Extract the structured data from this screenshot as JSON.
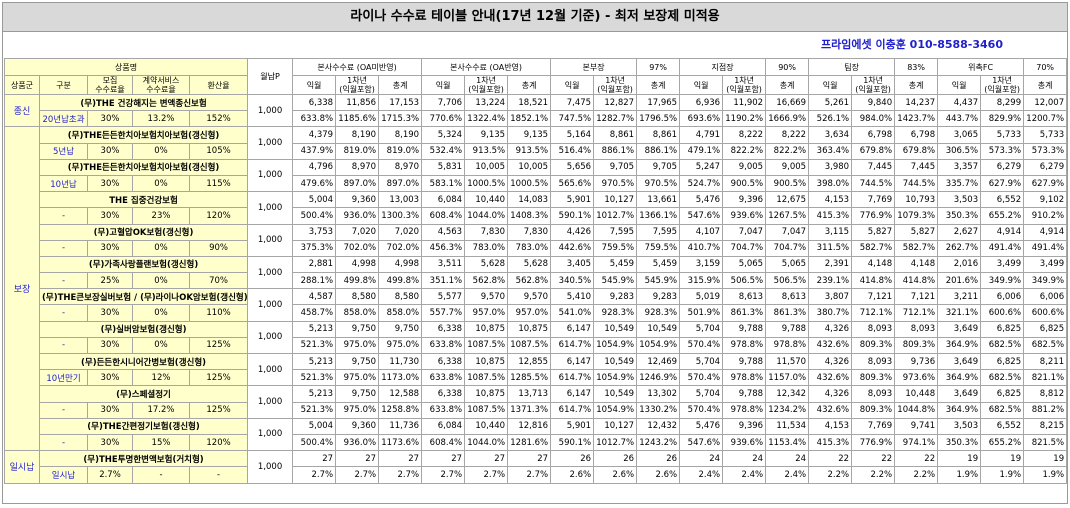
{
  "header": {
    "title": "라이나 수수료 테이블 안내(17년 12월 기준) - 최저 보장제 미적용",
    "contact": "프라임에셋 이충훈 010-8588-3460"
  },
  "table": {
    "product_header": "상품명",
    "left_columns": [
      "상품군",
      "구분",
      "모집\n수수료율",
      "계약서비스\n수수료율",
      "환산율"
    ],
    "monthly_header": "월납P",
    "groups_header": [
      {
        "name": "본사수수료 (OA미반영)"
      },
      {
        "name": "본사수수료 (OA반영)"
      },
      {
        "name": "본부장",
        "ratio": "97%"
      },
      {
        "name": "지점장",
        "ratio": "90%"
      },
      {
        "name": "팀장",
        "ratio": "83%"
      },
      {
        "name": "위촉FC",
        "ratio": "70%"
      }
    ],
    "sub_columns": [
      "익월",
      "1차년\n(익월포함)",
      "총계"
    ],
    "groups": [
      {
        "name": "종신",
        "products": [
          {
            "name": "(무)THE 건강해지는 변액종신보험",
            "term": "20년납초과",
            "recruit": "30%",
            "service": "13.2%",
            "conversion": "152%",
            "monthly": "1,000",
            "amounts": [
              "6,338",
              "11,856",
              "17,153",
              "7,706",
              "13,224",
              "18,521",
              "7,475",
              "12,827",
              "17,965",
              "6,936",
              "11,902",
              "16,669",
              "5,261",
              "9,840",
              "14,237",
              "4,437",
              "8,299",
              "12,007"
            ],
            "rates": [
              "633.8%",
              "1185.6%",
              "1715.3%",
              "770.6%",
              "1322.4%",
              "1852.1%",
              "747.5%",
              "1282.7%",
              "1796.5%",
              "693.6%",
              "1190.2%",
              "1666.9%",
              "526.1%",
              "984.0%",
              "1423.7%",
              "443.7%",
              "829.9%",
              "1200.7%"
            ]
          }
        ]
      },
      {
        "name": "보장",
        "products": [
          {
            "name": "(무)THE든든한치아보험치아보험(갱신형)",
            "term": "5년납",
            "recruit": "30%",
            "service": "0%",
            "conversion": "105%",
            "monthly": "1,000",
            "amounts": [
              "4,379",
              "8,190",
              "8,190",
              "5,324",
              "9,135",
              "9,135",
              "5,164",
              "8,861",
              "8,861",
              "4,791",
              "8,222",
              "8,222",
              "3,634",
              "6,798",
              "6,798",
              "3,065",
              "5,733",
              "5,733"
            ],
            "rates": [
              "437.9%",
              "819.0%",
              "819.0%",
              "532.4%",
              "913.5%",
              "913.5%",
              "516.4%",
              "886.1%",
              "886.1%",
              "479.1%",
              "822.2%",
              "822.2%",
              "363.4%",
              "679.8%",
              "679.8%",
              "306.5%",
              "573.3%",
              "573.3%"
            ]
          },
          {
            "name": "(무)THE든든한치아보험치아보험(갱신형)",
            "term": "10년납",
            "recruit": "30%",
            "service": "0%",
            "conversion": "115%",
            "monthly": "1,000",
            "amounts": [
              "4,796",
              "8,970",
              "8,970",
              "5,831",
              "10,005",
              "10,005",
              "5,656",
              "9,705",
              "9,705",
              "5,247",
              "9,005",
              "9,005",
              "3,980",
              "7,445",
              "7,445",
              "3,357",
              "6,279",
              "6,279"
            ],
            "rates": [
              "479.6%",
              "897.0%",
              "897.0%",
              "583.1%",
              "1000.5%",
              "1000.5%",
              "565.6%",
              "970.5%",
              "970.5%",
              "524.7%",
              "900.5%",
              "900.5%",
              "398.0%",
              "744.5%",
              "744.5%",
              "335.7%",
              "627.9%",
              "627.9%"
            ]
          },
          {
            "name": "THE 집중건강보험",
            "term": "-",
            "recruit": "30%",
            "service": "23%",
            "conversion": "120%",
            "monthly": "1,000",
            "amounts": [
              "5,004",
              "9,360",
              "13,003",
              "6,084",
              "10,440",
              "14,083",
              "5,901",
              "10,127",
              "13,661",
              "5,476",
              "9,396",
              "12,675",
              "4,153",
              "7,769",
              "10,793",
              "3,503",
              "6,552",
              "9,102"
            ],
            "rates": [
              "500.4%",
              "936.0%",
              "1300.3%",
              "608.4%",
              "1044.0%",
              "1408.3%",
              "590.1%",
              "1012.7%",
              "1366.1%",
              "547.6%",
              "939.6%",
              "1267.5%",
              "415.3%",
              "776.9%",
              "1079.3%",
              "350.3%",
              "655.2%",
              "910.2%"
            ]
          },
          {
            "name": "(무)고혈압OK보험(갱신형)",
            "term": "-",
            "recruit": "30%",
            "service": "0%",
            "conversion": "90%",
            "monthly": "1,000",
            "amounts": [
              "3,753",
              "7,020",
              "7,020",
              "4,563",
              "7,830",
              "7,830",
              "4,426",
              "7,595",
              "7,595",
              "4,107",
              "7,047",
              "7,047",
              "3,115",
              "5,827",
              "5,827",
              "2,627",
              "4,914",
              "4,914"
            ],
            "rates": [
              "375.3%",
              "702.0%",
              "702.0%",
              "456.3%",
              "783.0%",
              "783.0%",
              "442.6%",
              "759.5%",
              "759.5%",
              "410.7%",
              "704.7%",
              "704.7%",
              "311.5%",
              "582.7%",
              "582.7%",
              "262.7%",
              "491.4%",
              "491.4%"
            ]
          },
          {
            "name": "(무)가족사랑플랜보험(갱신형)",
            "term": "-",
            "recruit": "25%",
            "service": "0%",
            "conversion": "70%",
            "monthly": "1,000",
            "amounts": [
              "2,881",
              "4,998",
              "4,998",
              "3,511",
              "5,628",
              "5,628",
              "3,405",
              "5,459",
              "5,459",
              "3,159",
              "5,065",
              "5,065",
              "2,391",
              "4,148",
              "4,148",
              "2,016",
              "3,499",
              "3,499"
            ],
            "rates": [
              "288.1%",
              "499.8%",
              "499.8%",
              "351.1%",
              "562.8%",
              "562.8%",
              "340.5%",
              "545.9%",
              "545.9%",
              "315.9%",
              "506.5%",
              "506.5%",
              "239.1%",
              "414.8%",
              "414.8%",
              "201.6%",
              "349.9%",
              "349.9%"
            ]
          },
          {
            "name": "(무)THE큰보장실버보험 / (무)라이나OK암보험(갱신형)",
            "term": "-",
            "recruit": "30%",
            "service": "0%",
            "conversion": "110%",
            "monthly": "1,000",
            "amounts": [
              "4,587",
              "8,580",
              "8,580",
              "5,577",
              "9,570",
              "9,570",
              "5,410",
              "9,283",
              "9,283",
              "5,019",
              "8,613",
              "8,613",
              "3,807",
              "7,121",
              "7,121",
              "3,211",
              "6,006",
              "6,006"
            ],
            "rates": [
              "458.7%",
              "858.0%",
              "858.0%",
              "557.7%",
              "957.0%",
              "957.0%",
              "541.0%",
              "928.3%",
              "928.3%",
              "501.9%",
              "861.3%",
              "861.3%",
              "380.7%",
              "712.1%",
              "712.1%",
              "321.1%",
              "600.6%",
              "600.6%"
            ]
          },
          {
            "name": "(무)실버암보험(갱신형)",
            "term": "-",
            "recruit": "30%",
            "service": "0%",
            "conversion": "125%",
            "monthly": "1,000",
            "amounts": [
              "5,213",
              "9,750",
              "9,750",
              "6,338",
              "10,875",
              "10,875",
              "6,147",
              "10,549",
              "10,549",
              "5,704",
              "9,788",
              "9,788",
              "4,326",
              "8,093",
              "8,093",
              "3,649",
              "6,825",
              "6,825"
            ],
            "rates": [
              "521.3%",
              "975.0%",
              "975.0%",
              "633.8%",
              "1087.5%",
              "1087.5%",
              "614.7%",
              "1054.9%",
              "1054.9%",
              "570.4%",
              "978.8%",
              "978.8%",
              "432.6%",
              "809.3%",
              "809.3%",
              "364.9%",
              "682.5%",
              "682.5%"
            ]
          },
          {
            "name": "(무)든든한시니어간병보험(갱신형)",
            "term": "10년만기",
            "recruit": "30%",
            "service": "12%",
            "conversion": "125%",
            "monthly": "1,000",
            "amounts": [
              "5,213",
              "9,750",
              "11,730",
              "6,338",
              "10,875",
              "12,855",
              "6,147",
              "10,549",
              "12,469",
              "5,704",
              "9,788",
              "11,570",
              "4,326",
              "8,093",
              "9,736",
              "3,649",
              "6,825",
              "8,211"
            ],
            "rates": [
              "521.3%",
              "975.0%",
              "1173.0%",
              "633.8%",
              "1087.5%",
              "1285.5%",
              "614.7%",
              "1054.9%",
              "1246.9%",
              "570.4%",
              "978.8%",
              "1157.0%",
              "432.6%",
              "809.3%",
              "973.6%",
              "364.9%",
              "682.5%",
              "821.1%"
            ]
          },
          {
            "name": "(무)스페셜정기",
            "term": "-",
            "recruit": "30%",
            "service": "17.2%",
            "conversion": "125%",
            "monthly": "1,000",
            "amounts": [
              "5,213",
              "9,750",
              "12,588",
              "6,338",
              "10,875",
              "13,713",
              "6,147",
              "10,549",
              "13,302",
              "5,704",
              "9,788",
              "12,342",
              "4,326",
              "8,093",
              "10,448",
              "3,649",
              "6,825",
              "8,812"
            ],
            "rates": [
              "521.3%",
              "975.0%",
              "1258.8%",
              "633.8%",
              "1087.5%",
              "1371.3%",
              "614.7%",
              "1054.9%",
              "1330.2%",
              "570.4%",
              "978.8%",
              "1234.2%",
              "432.6%",
              "809.3%",
              "1044.8%",
              "364.9%",
              "682.5%",
              "881.2%"
            ]
          },
          {
            "name": "(무)THE간편정기보험(갱신형)",
            "term": "-",
            "recruit": "30%",
            "service": "15%",
            "conversion": "120%",
            "monthly": "1,000",
            "amounts": [
              "5,004",
              "9,360",
              "11,736",
              "6,084",
              "10,440",
              "12,816",
              "5,901",
              "10,127",
              "12,432",
              "5,476",
              "9,396",
              "11,534",
              "4,153",
              "7,769",
              "9,741",
              "3,503",
              "6,552",
              "8,215"
            ],
            "rates": [
              "500.4%",
              "936.0%",
              "1173.6%",
              "608.4%",
              "1044.0%",
              "1281.6%",
              "590.1%",
              "1012.7%",
              "1243.2%",
              "547.6%",
              "939.6%",
              "1153.4%",
              "415.3%",
              "776.9%",
              "974.1%",
              "350.3%",
              "655.2%",
              "821.5%"
            ]
          }
        ]
      },
      {
        "name": "일시납",
        "products": [
          {
            "name": "(무)THE투명한변액보험(거치형)",
            "term": "일시납",
            "recruit": "2.7%",
            "service": "-",
            "conversion": "-",
            "monthly": "1,000",
            "amounts": [
              "27",
              "27",
              "27",
              "27",
              "27",
              "27",
              "26",
              "26",
              "26",
              "24",
              "24",
              "24",
              "22",
              "22",
              "22",
              "19",
              "19",
              "19"
            ],
            "rates": [
              "2.7%",
              "2.7%",
              "2.7%",
              "2.7%",
              "2.7%",
              "2.7%",
              "2.6%",
              "2.6%",
              "2.6%",
              "2.4%",
              "2.4%",
              "2.4%",
              "2.2%",
              "2.2%",
              "2.2%",
              "1.9%",
              "1.9%",
              "1.9%"
            ]
          }
        ]
      }
    ]
  }
}
